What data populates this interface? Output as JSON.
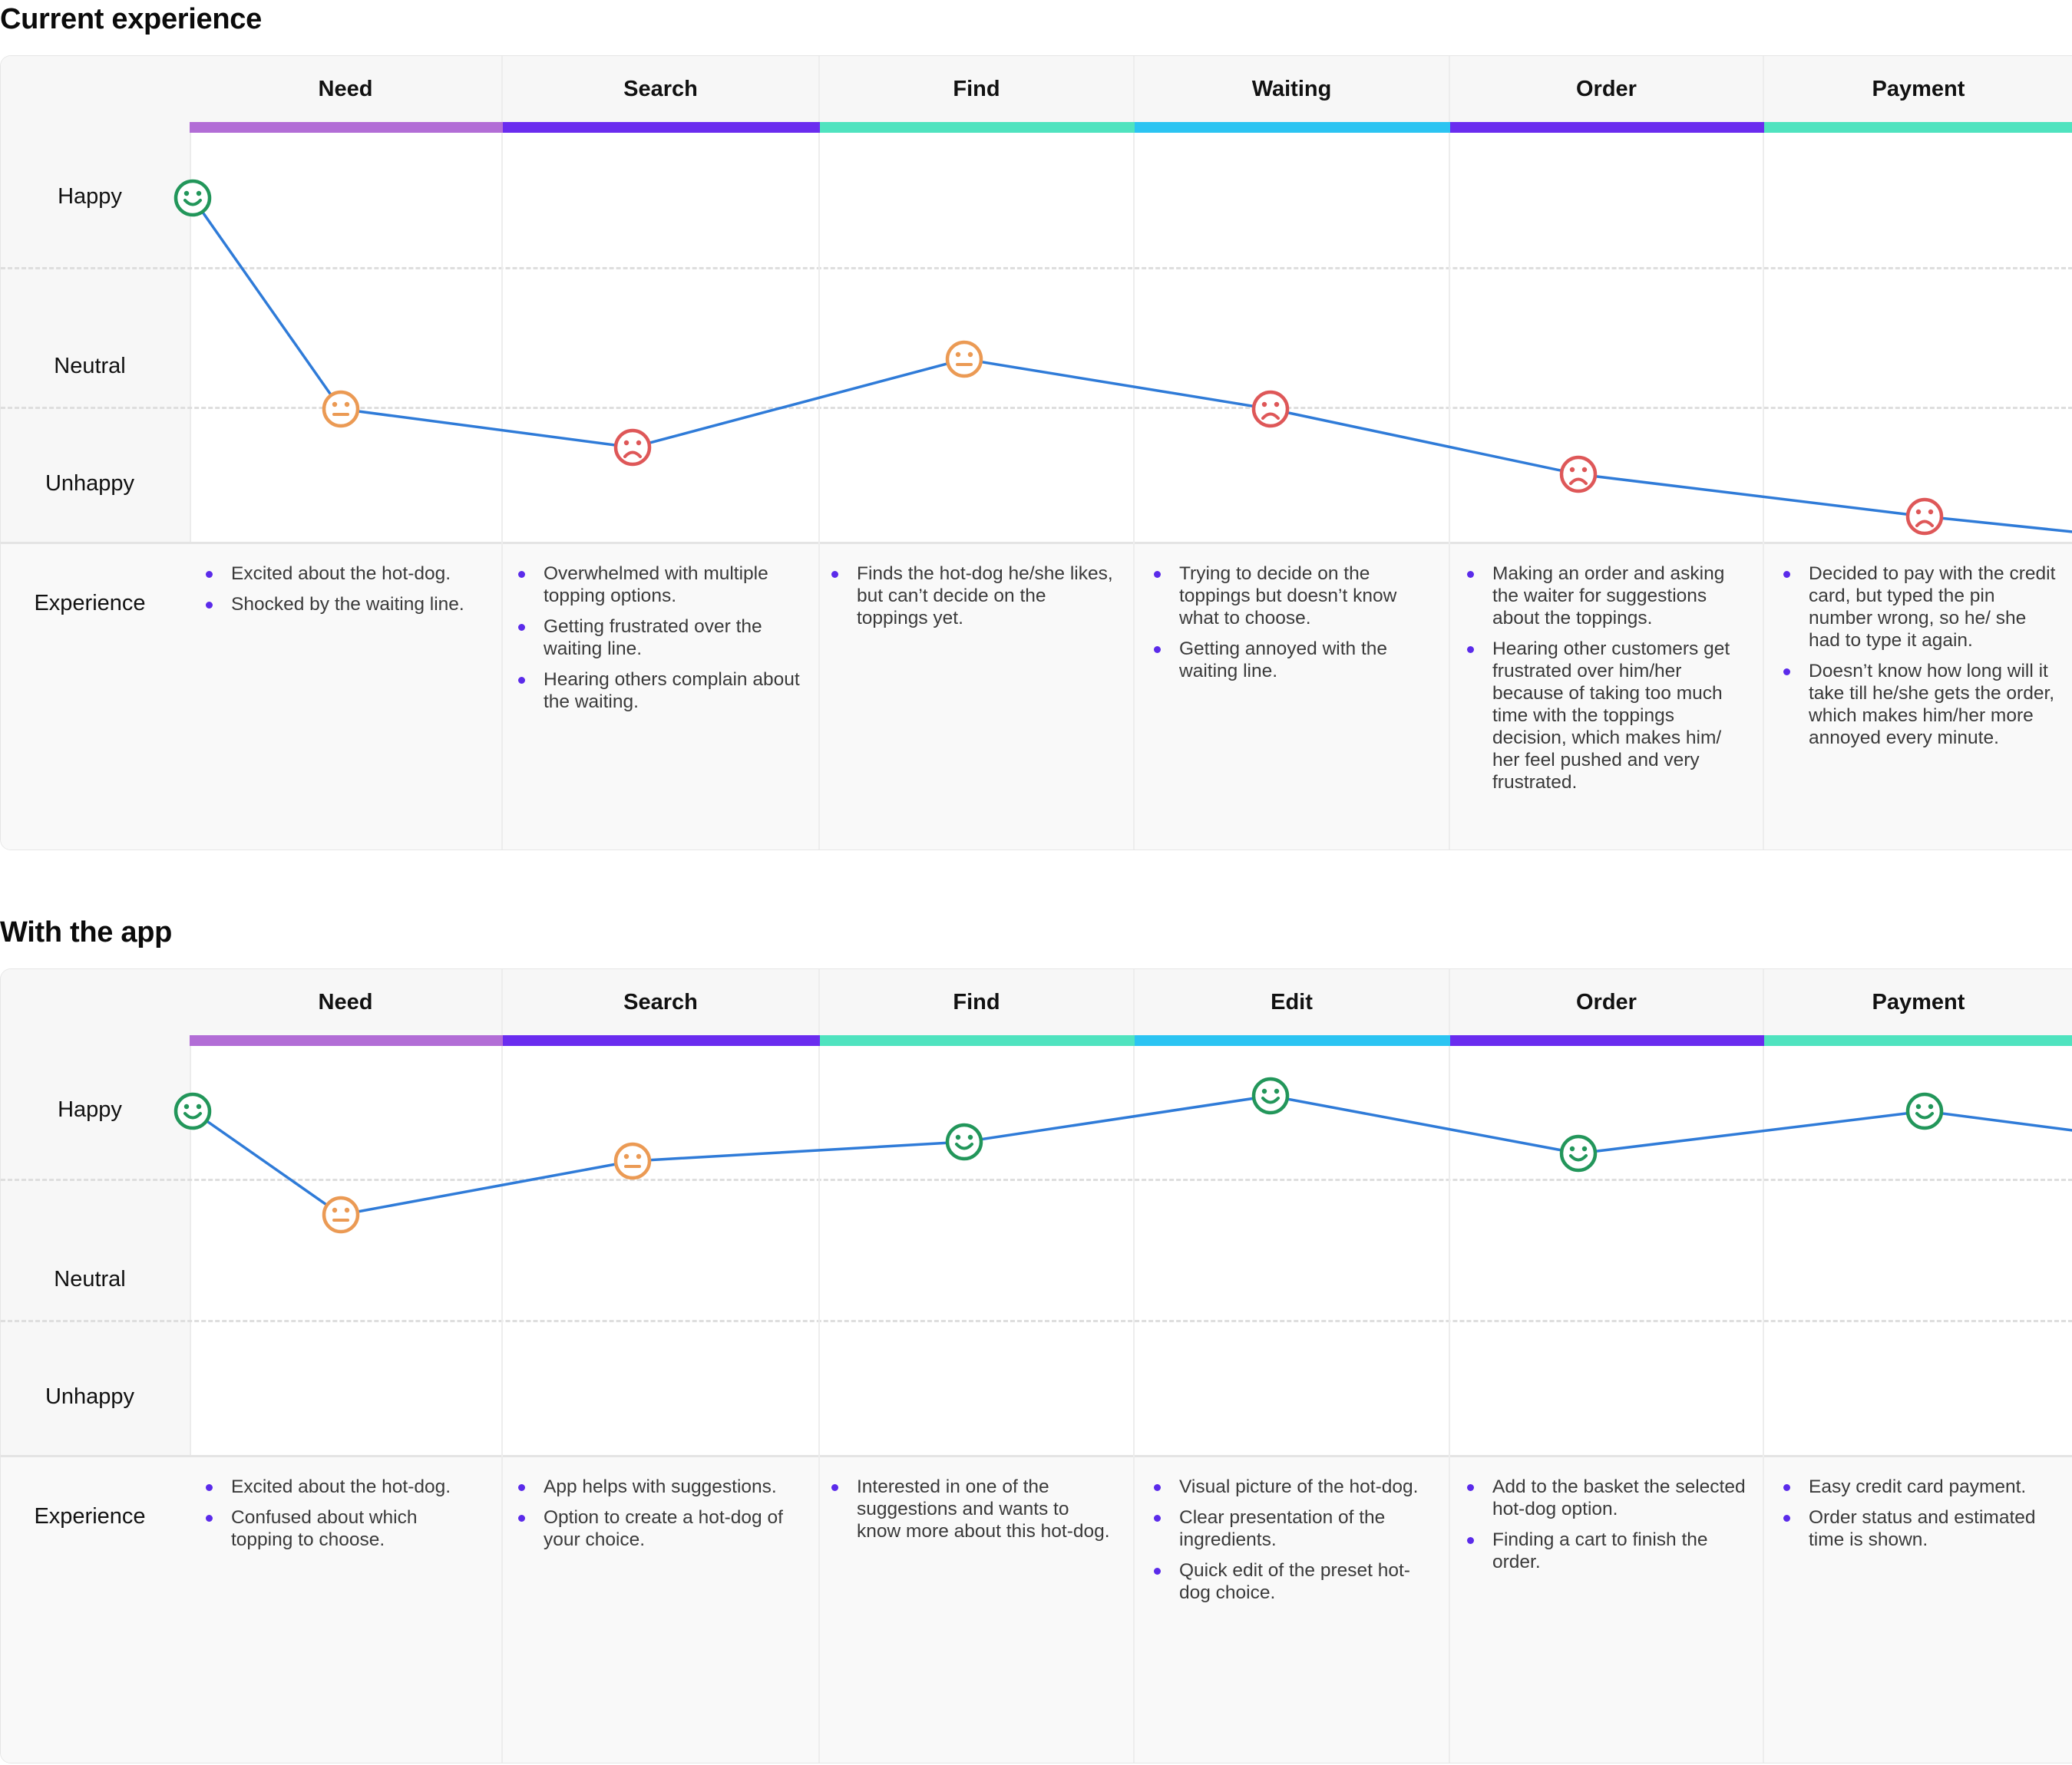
{
  "colors": {
    "line": "#2f7bd8",
    "happy": "#22965a",
    "neutral": "#eb9a54",
    "unhappy": "#de5758",
    "bullet": "#5b2bea"
  },
  "row_labels": {
    "happy": "Happy",
    "neutral": "Neutral",
    "unhappy": "Unhappy",
    "experience": "Experience"
  },
  "sections": [
    {
      "title": "Current experience",
      "phases": [
        {
          "label": "Need",
          "color": "#b26dd6"
        },
        {
          "label": "Search",
          "color": "#6a2cef"
        },
        {
          "label": "Find",
          "color": "#4fe3bf"
        },
        {
          "label": "Waiting",
          "color": "#2bc4f2"
        },
        {
          "label": "Order",
          "color": "#6a2cef"
        },
        {
          "label": "Payment",
          "color": "#4fe3bf"
        }
      ],
      "emotion_points": [
        {
          "mood": "happy",
          "icon": "happy-face-icon",
          "level": 0.87
        },
        {
          "mood": "neutral",
          "icon": "neutral-face-icon",
          "level": 0.32
        },
        {
          "mood": "unhappy",
          "icon": "unhappy-face-icon",
          "level": 0.22
        },
        {
          "mood": "neutral",
          "icon": "neutral-face-icon",
          "level": 0.45
        },
        {
          "mood": "unhappy",
          "icon": "unhappy-face-icon",
          "level": 0.32
        },
        {
          "mood": "unhappy",
          "icon": "unhappy-face-icon",
          "level": 0.15
        },
        {
          "mood": "unhappy",
          "icon": "unhappy-face-icon",
          "level": 0.04
        }
      ],
      "line_tail_level": 0.0,
      "experience": [
        [
          "Excited about the hot-dog.",
          "Shocked by the waiting line."
        ],
        [
          "Overwhelmed with multiple topping options.",
          "Getting frustrated over the waiting line.",
          "Hearing others complain about the waiting."
        ],
        [
          "Finds the hot-dog he/she likes, but can’t decide on the toppings yet."
        ],
        [
          "Trying to decide on the toppings but doesn’t know what to choose.",
          "Getting annoyed with the waiting line."
        ],
        [
          "Making an order and asking the waiter for suggestions about the toppings.",
          "Hearing other customers get frustrated over him/her because of taking too much time with the toppings decision, which makes him/ her feel pushed and very frustrated."
        ],
        [
          "Decided to pay with the credit card, but typed the pin number wrong, so he/ she had to type it again.",
          "Doesn’t know how long will it take till he/she gets the order, which makes him/her more annoyed every minute."
        ]
      ]
    },
    {
      "title": "With the app",
      "phases": [
        {
          "label": "Need",
          "color": "#b26dd6"
        },
        {
          "label": "Search",
          "color": "#6a2cef"
        },
        {
          "label": "Find",
          "color": "#4fe3bf"
        },
        {
          "label": "Edit",
          "color": "#2bc4f2"
        },
        {
          "label": "Order",
          "color": "#6a2cef"
        },
        {
          "label": "Payment",
          "color": "#4fe3bf"
        }
      ],
      "emotion_points": [
        {
          "mood": "happy",
          "icon": "happy-face-icon",
          "level": 0.87
        },
        {
          "mood": "neutral",
          "icon": "neutral-face-icon",
          "level": 0.6
        },
        {
          "mood": "neutral",
          "icon": "neutral-face-icon",
          "level": 0.74
        },
        {
          "mood": "happy",
          "icon": "happy-face-icon",
          "level": 0.79
        },
        {
          "mood": "happy",
          "icon": "happy-face-icon",
          "level": 0.91
        },
        {
          "mood": "happy",
          "icon": "happy-face-icon",
          "level": 0.76
        },
        {
          "mood": "happy",
          "icon": "happy-face-icon",
          "level": 0.87
        }
      ],
      "line_tail_level": 0.82,
      "experience": [
        [
          "Excited about the hot-dog.",
          "Confused about which topping to choose."
        ],
        [
          "App helps with suggestions.",
          "Option to create a hot-dog of your choice."
        ],
        [
          "Interested in one of the suggestions and wants to know more about this hot-dog."
        ],
        [
          "Visual picture of the hot-dog.",
          "Clear presentation of the ingredients.",
          "Quick edit of the preset hot-dog choice."
        ],
        [
          "Add to the basket the selected hot-dog option.",
          "Finding a cart to finish the order."
        ],
        [
          "Easy credit card payment.",
          "Order status and estimated time is shown."
        ]
      ]
    }
  ]
}
